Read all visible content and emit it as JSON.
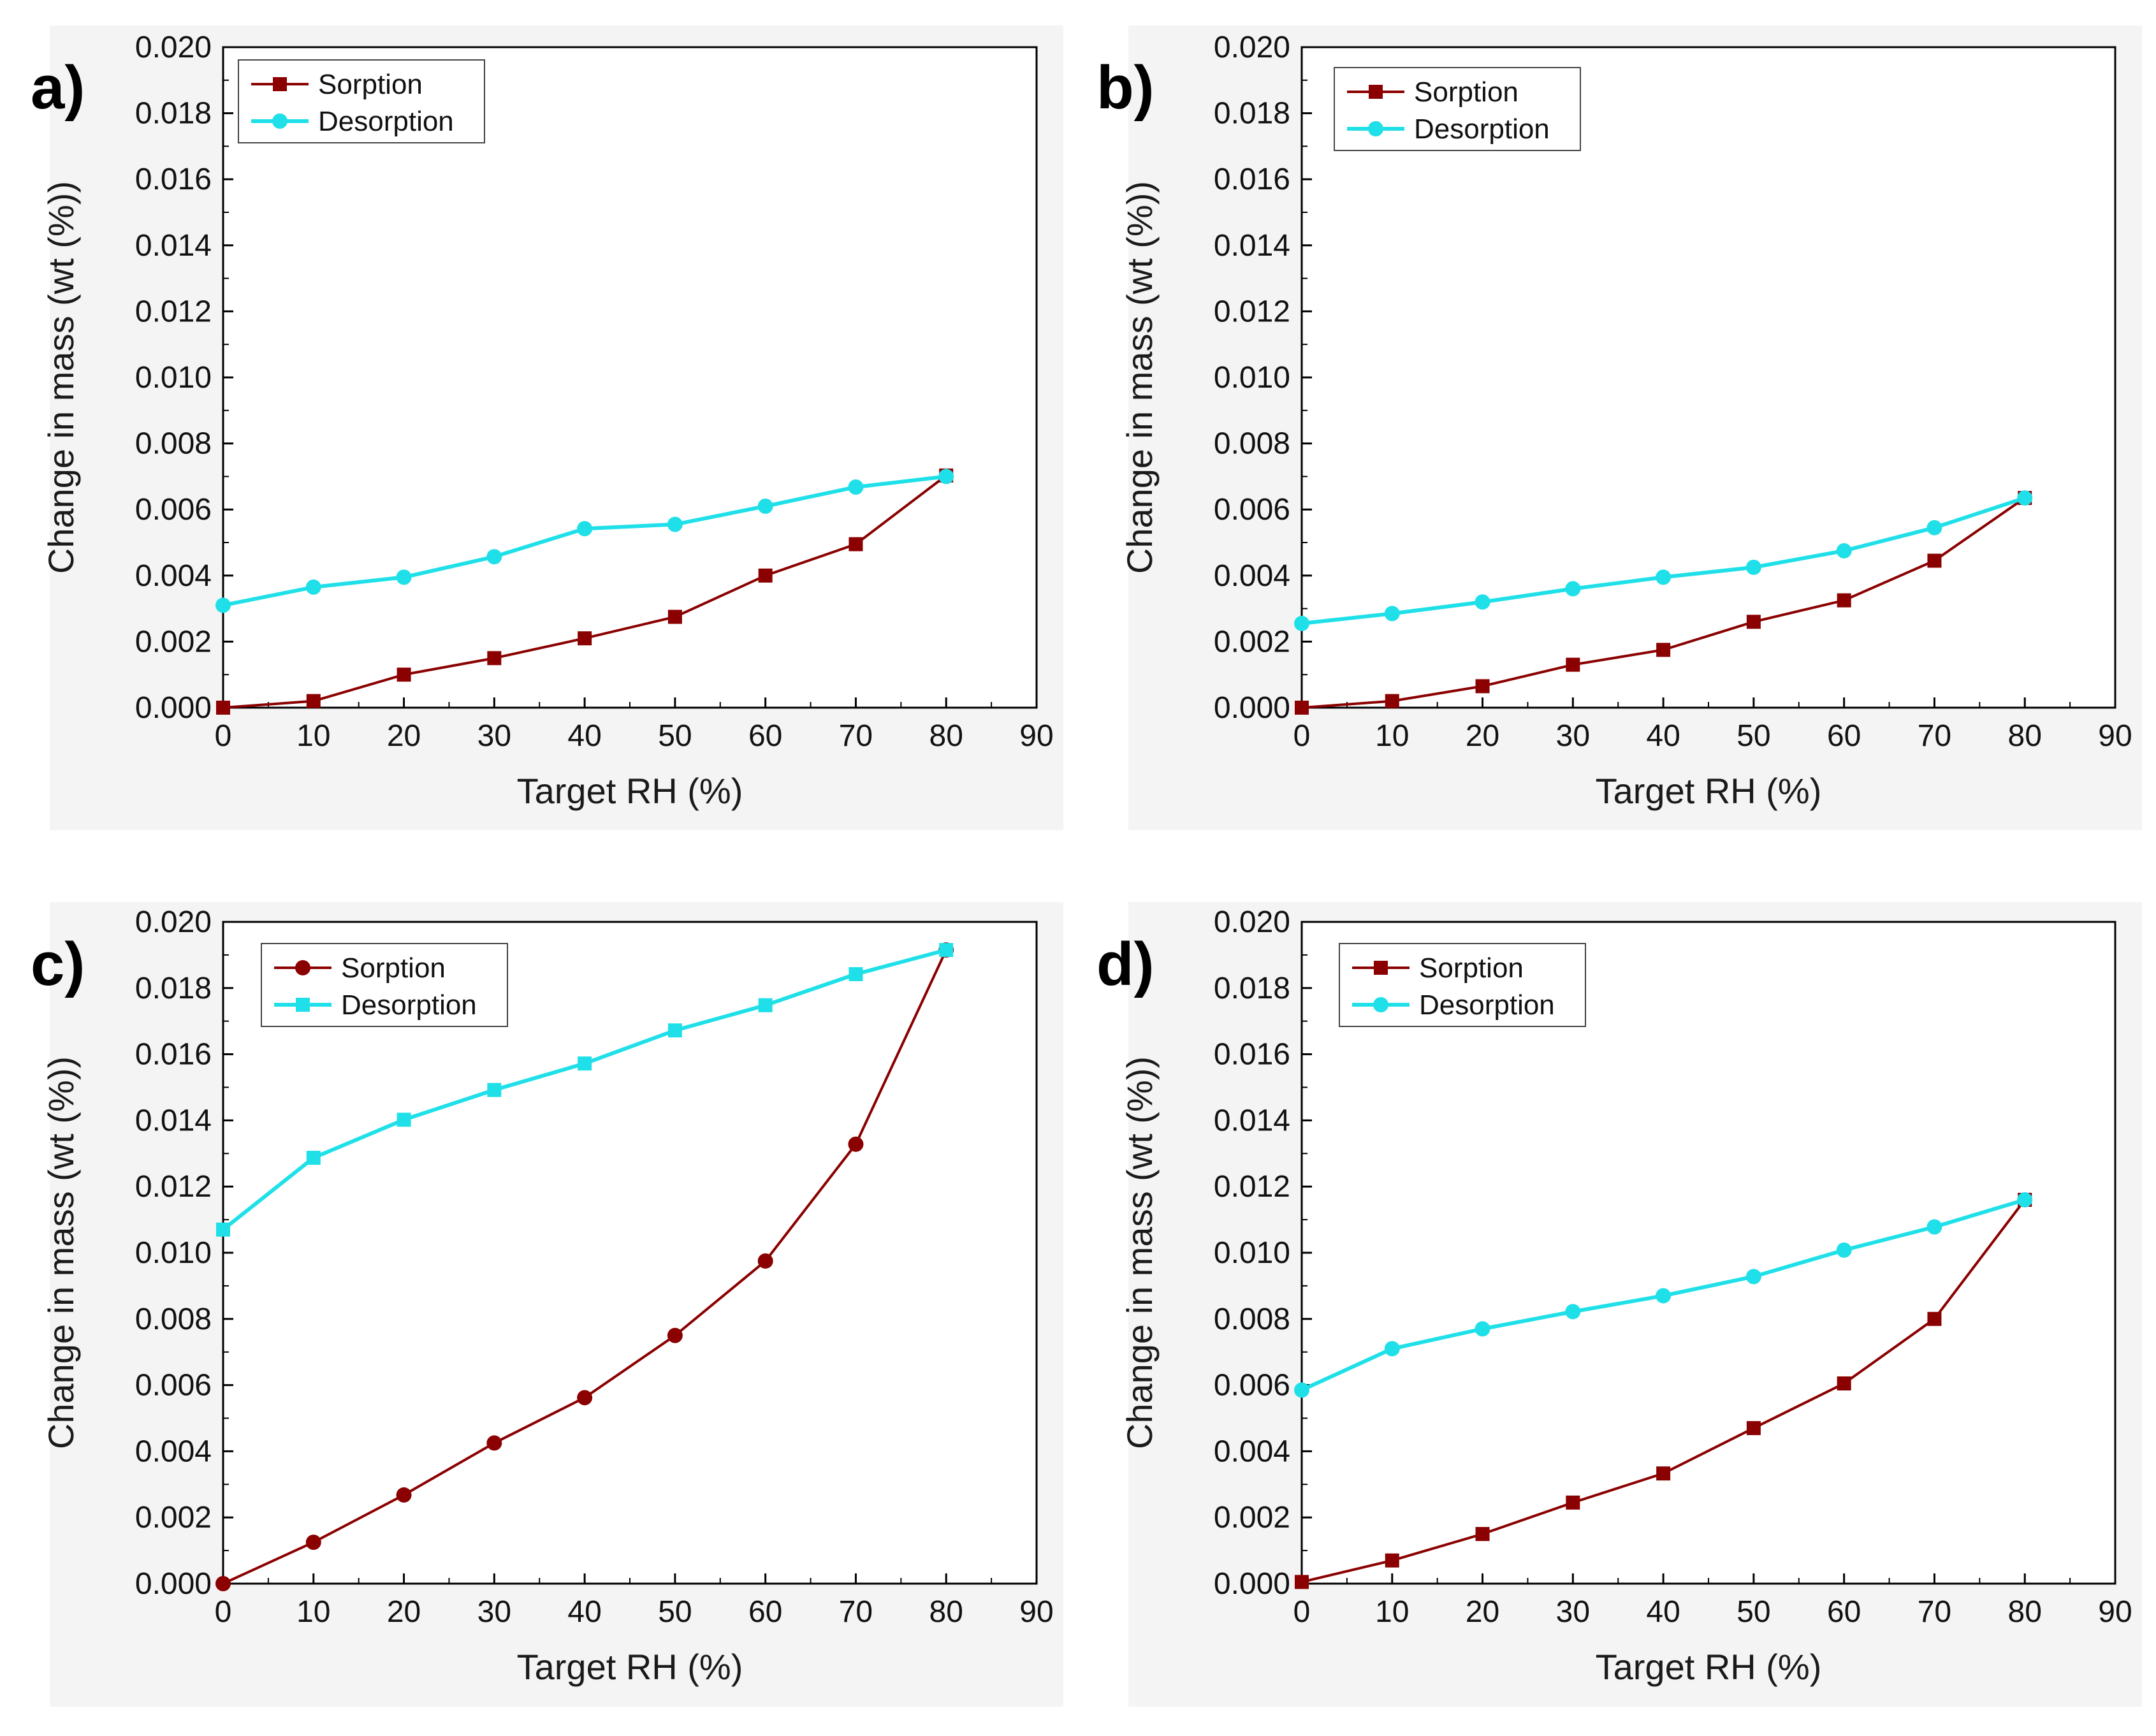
{
  "colors": {
    "sorption": "#8b0000",
    "desorption": "#1fe0e8",
    "axis": "#000000"
  },
  "chart_data": [
    {
      "type": "line",
      "panel_label": "a)",
      "xlabel": "Target RH (%)",
      "ylabel": "Change in mass (wt (%))",
      "xlim": [
        0,
        90
      ],
      "ylim": [
        0,
        0.02
      ],
      "xticks": [
        "0",
        "10",
        "20",
        "30",
        "40",
        "50",
        "60",
        "70",
        "80",
        "90"
      ],
      "yticks": [
        "0.000",
        "0.002",
        "0.004",
        "0.006",
        "0.008",
        "0.010",
        "0.012",
        "0.014",
        "0.016",
        "0.018",
        "0.020"
      ],
      "legend_position": "top-left",
      "series": [
        {
          "name": "Sorption",
          "marker": "square",
          "color": "#8b0000",
          "x": [
            0,
            10,
            20,
            30,
            40,
            50,
            60,
            70,
            80
          ],
          "y": [
            0.0,
            0.0002,
            0.001,
            0.0015,
            0.0021,
            0.00275,
            0.004,
            0.00495,
            0.00703
          ]
        },
        {
          "name": "Desorption",
          "marker": "circle",
          "color": "#1fe0e8",
          "x": [
            0,
            10,
            20,
            30,
            40,
            50,
            60,
            70,
            80
          ],
          "y": [
            0.0031,
            0.00365,
            0.00395,
            0.00457,
            0.00542,
            0.00555,
            0.0061,
            0.00668,
            0.007
          ]
        }
      ]
    },
    {
      "type": "line",
      "panel_label": "b)",
      "xlabel": "Target RH (%)",
      "ylabel": "Change in mass (wt (%))",
      "xlim": [
        0,
        90
      ],
      "ylim": [
        0,
        0.02
      ],
      "xticks": [
        "0",
        "10",
        "20",
        "30",
        "40",
        "50",
        "60",
        "70",
        "80",
        "90"
      ],
      "yticks": [
        "0.000",
        "0.002",
        "0.004",
        "0.006",
        "0.008",
        "0.010",
        "0.012",
        "0.014",
        "0.016",
        "0.018",
        "0.020"
      ],
      "legend_position": "top-left",
      "series": [
        {
          "name": "Sorption",
          "marker": "square",
          "color": "#8b0000",
          "x": [
            0,
            10,
            20,
            30,
            40,
            50,
            60,
            70,
            80
          ],
          "y": [
            0.0,
            0.0002,
            0.00065,
            0.0013,
            0.00175,
            0.0026,
            0.00325,
            0.00445,
            0.00635
          ]
        },
        {
          "name": "Desorption",
          "marker": "circle",
          "color": "#1fe0e8",
          "x": [
            0,
            10,
            20,
            30,
            40,
            50,
            60,
            70,
            80
          ],
          "y": [
            0.00255,
            0.00285,
            0.0032,
            0.0036,
            0.00395,
            0.00425,
            0.00475,
            0.00545,
            0.00635
          ]
        }
      ]
    },
    {
      "type": "line",
      "panel_label": "c)",
      "xlabel": "Target RH (%)",
      "ylabel": "Change in mass (wt (%))",
      "xlim": [
        0,
        90
      ],
      "ylim": [
        0,
        0.02
      ],
      "xticks": [
        "0",
        "10",
        "20",
        "30",
        "40",
        "50",
        "60",
        "70",
        "80",
        "90"
      ],
      "yticks": [
        "0.000",
        "0.002",
        "0.004",
        "0.006",
        "0.008",
        "0.010",
        "0.012",
        "0.014",
        "0.016",
        "0.018",
        "0.020"
      ],
      "legend_position": "top-left",
      "series": [
        {
          "name": "Sorption",
          "marker": "circle",
          "color": "#8b0000",
          "x": [
            0,
            10,
            20,
            30,
            40,
            50,
            60,
            70,
            80
          ],
          "y": [
            0.0,
            0.00125,
            0.00268,
            0.00425,
            0.00562,
            0.0075,
            0.00975,
            0.01328,
            0.01915
          ]
        },
        {
          "name": "Desorption",
          "marker": "square",
          "color": "#1fe0e8",
          "x": [
            0,
            10,
            20,
            30,
            40,
            50,
            60,
            70,
            80
          ],
          "y": [
            0.0107,
            0.01287,
            0.01402,
            0.01492,
            0.01572,
            0.01672,
            0.01748,
            0.01842,
            0.01915
          ]
        }
      ]
    },
    {
      "type": "line",
      "panel_label": "d)",
      "xlabel": "Target RH (%)",
      "ylabel": "Change in mass (wt (%))",
      "xlim": [
        0,
        90
      ],
      "ylim": [
        0,
        0.02
      ],
      "xticks": [
        "0",
        "10",
        "20",
        "30",
        "40",
        "50",
        "60",
        "70",
        "80",
        "90"
      ],
      "yticks": [
        "0.000",
        "0.002",
        "0.004",
        "0.006",
        "0.008",
        "0.010",
        "0.012",
        "0.014",
        "0.016",
        "0.018",
        "0.020"
      ],
      "legend_position": "top-left",
      "series": [
        {
          "name": "Sorption",
          "marker": "square",
          "color": "#8b0000",
          "x": [
            0,
            10,
            20,
            30,
            40,
            50,
            60,
            70,
            80
          ],
          "y": [
            5e-05,
            0.0007,
            0.0015,
            0.00245,
            0.00333,
            0.0047,
            0.00605,
            0.008,
            0.0116
          ]
        },
        {
          "name": "Desorption",
          "marker": "circle",
          "color": "#1fe0e8",
          "x": [
            0,
            10,
            20,
            30,
            40,
            50,
            60,
            70,
            80
          ],
          "y": [
            0.00585,
            0.0071,
            0.0077,
            0.00822,
            0.0087,
            0.00928,
            0.01008,
            0.01078,
            0.0116
          ]
        }
      ]
    }
  ]
}
